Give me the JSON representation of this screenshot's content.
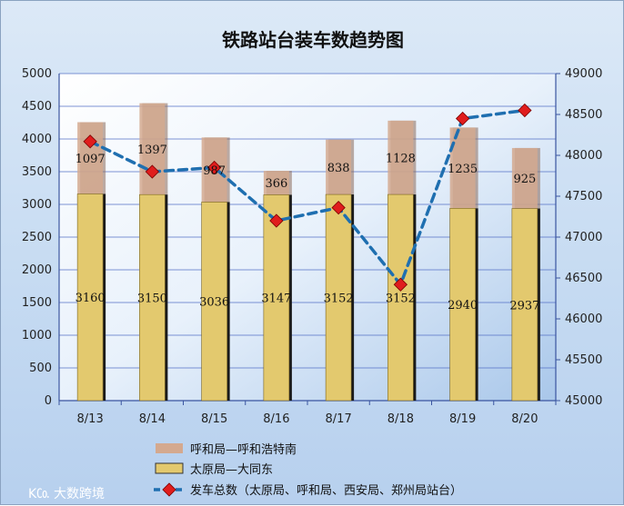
{
  "chart_data": {
    "type": "bar",
    "title": "铁路站台装车数趋势图",
    "categories": [
      "8/13",
      "8/14",
      "8/15",
      "8/16",
      "8/17",
      "8/18",
      "8/19",
      "8/20"
    ],
    "series": [
      {
        "name": "太原局—大同东",
        "chart": "stacked-bar",
        "axis": "left",
        "color": "#e3c96e",
        "values": [
          3160,
          3150,
          3036,
          3147,
          3152,
          3152,
          2940,
          2937
        ]
      },
      {
        "name": "呼和局—呼和浩特南",
        "chart": "stacked-bar",
        "axis": "left",
        "color": "#d4a98f",
        "values": [
          1097,
          1397,
          987,
          366,
          838,
          1128,
          1235,
          925
        ]
      },
      {
        "name": "发车总数（太原局、呼和局、西安局、郑州局站台）",
        "chart": "line",
        "axis": "right",
        "color": "#1f6fb0",
        "marker_color": "#e01d1d",
        "values": [
          48170,
          47800,
          47850,
          47200,
          47360,
          46420,
          48450,
          48550
        ]
      }
    ],
    "y_left": {
      "range": [
        0,
        5000
      ],
      "ticks": [
        "0",
        "500",
        "1000",
        "1500",
        "2000",
        "2500",
        "3000",
        "3500",
        "4000",
        "4500",
        "5000"
      ]
    },
    "y_right": {
      "range": [
        45000,
        49000
      ],
      "ticks": [
        "45000",
        "45500",
        "46000",
        "46500",
        "47000",
        "47500",
        "48000",
        "48500",
        "49000"
      ]
    },
    "grid": true,
    "legend_position": "bottom"
  },
  "watermark": "大数跨境"
}
